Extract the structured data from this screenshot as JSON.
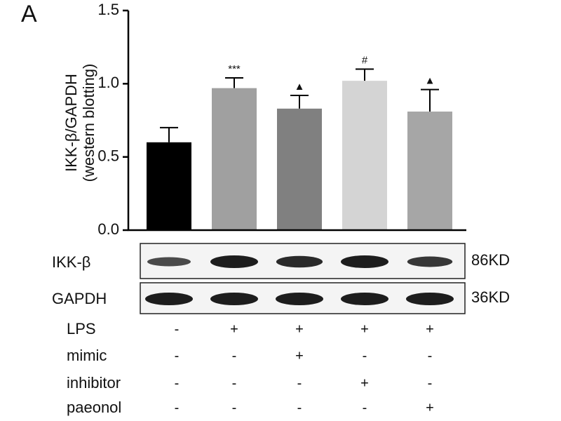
{
  "panel_label": "A",
  "chart_data": {
    "type": "bar",
    "ylabel": [
      "IKK-β/GAPDH",
      "(western blotting)"
    ],
    "values": [
      0.6,
      0.97,
      0.83,
      1.02,
      0.81
    ],
    "errors": [
      0.1,
      0.07,
      0.09,
      0.08,
      0.15
    ],
    "colors": [
      "#000000",
      "#a0a0a0",
      "#808080",
      "#d4d4d4",
      "#a6a6a6"
    ],
    "annotations": [
      null,
      "***",
      "▲",
      "#",
      "▲"
    ],
    "ylim": [
      0,
      1.5
    ],
    "yticks": [
      {
        "value": 0,
        "label": "0.0"
      },
      {
        "value": 0.5,
        "label": "0.5"
      },
      {
        "value": 1,
        "label": "1.0"
      },
      {
        "value": 1.5,
        "label": "1.5"
      }
    ]
  },
  "blot": {
    "rows": [
      {
        "label": "IKK-β",
        "size": "86KD"
      },
      {
        "label": "GAPDH",
        "size": "36KD"
      }
    ]
  },
  "treatments": [
    {
      "label": "LPS",
      "signs": [
        "-",
        "+",
        "+",
        "+",
        "+"
      ]
    },
    {
      "label": "mimic",
      "signs": [
        "-",
        "-",
        "+",
        "-",
        "-"
      ]
    },
    {
      "label": "inhibitor",
      "signs": [
        "-",
        "-",
        "-",
        "+",
        "-"
      ]
    },
    {
      "label": "paeonol",
      "signs": [
        "-",
        "-",
        "-",
        "-",
        "+"
      ]
    }
  ]
}
